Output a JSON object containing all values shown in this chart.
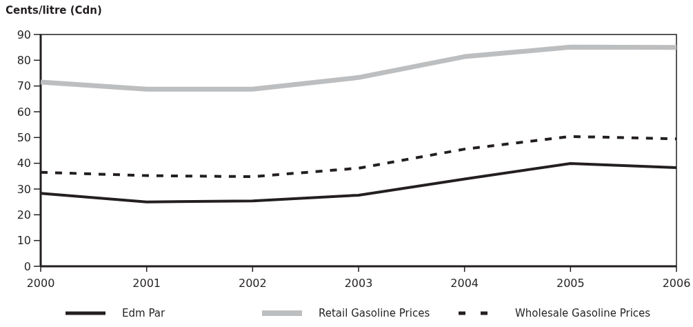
{
  "chart_data": {
    "type": "line",
    "ylabel": "Cents/litre (Cdn)",
    "x": [
      2000,
      2001,
      2002,
      2003,
      2004,
      2005,
      2006
    ],
    "xlim": [
      2000,
      2006
    ],
    "xticks": [
      2000,
      2001,
      2002,
      2003,
      2004,
      2005,
      2006
    ],
    "ylim": [
      0,
      90
    ],
    "yticks": [
      0,
      10,
      20,
      30,
      40,
      50,
      60,
      70,
      80,
      90
    ],
    "grid": false,
    "legend": "bottom",
    "series": [
      {
        "name": "Edm Par",
        "color": "#231f20",
        "line_style": "solid",
        "values": [
          28.3,
          25.0,
          25.4,
          27.6,
          33.9,
          39.9,
          38.3
        ]
      },
      {
        "name": "Retail Gasoline Prices",
        "color": "#bcbec0",
        "line_style": "solid",
        "values": [
          71.5,
          68.8,
          68.8,
          73.3,
          81.4,
          85.1,
          85.0
        ]
      },
      {
        "name": "Wholesale Gasoline Prices",
        "color": "#231f20",
        "line_style": "dashed",
        "values": [
          36.5,
          35.2,
          34.8,
          38.1,
          45.5,
          50.4,
          49.5
        ]
      }
    ]
  }
}
